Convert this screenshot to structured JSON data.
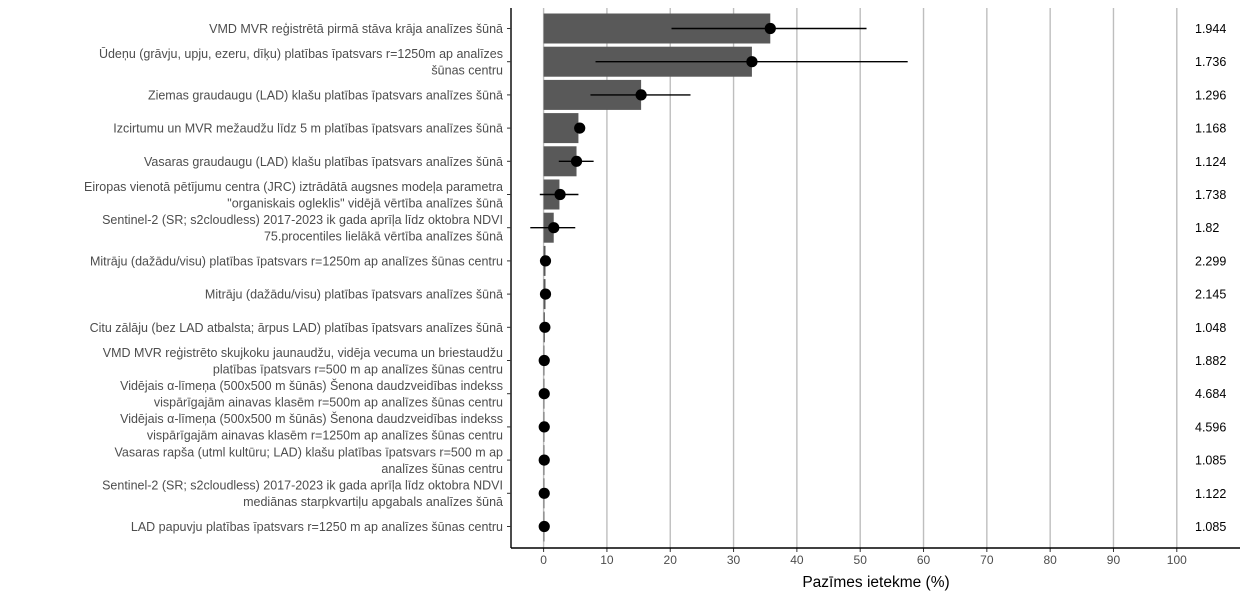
{
  "chart_data": {
    "type": "bar",
    "orientation": "horizontal",
    "xlabel": "Pazīmes ietekme (%)",
    "xlim": [
      -5,
      110
    ],
    "xticks": [
      0,
      10,
      20,
      30,
      40,
      50,
      60,
      70,
      80,
      90,
      100
    ],
    "grid": "vertical major lines at x ticks",
    "colors": {
      "bar": "#595959",
      "point": "#000000",
      "errorbar": "#000000",
      "grid": "#bebebe"
    },
    "categories": [
      [
        "VMD MVR reģistrētā pirmā stāva krāja analīzes šūnā"
      ],
      [
        "Ūdeņu (grāvju, upju, ezeru, dīķu) platības īpatsvars r=1250m ap analīzes",
        "šūnas centru"
      ],
      [
        "Ziemas graudaugu (LAD) klašu platības īpatsvars analīzes šūnā"
      ],
      [
        "Izcirtumu un MVR mežaudžu līdz 5 m platības īpatsvars analīzes šūnā"
      ],
      [
        "Vasaras graudaugu (LAD) klašu platības īpatsvars analīzes šūnā"
      ],
      [
        "Eiropas vienotā pētījumu centra (JRC) iztrādātā augsnes modeļa parametra",
        "\"organiskais ogleklis\" vidējā vērtība analīzes šūnā"
      ],
      [
        "Sentinel-2 (SR; s2cloudless) 2017-2023 ik gada aprīļa līdz oktobra NDVI",
        "75.procentiles lielākā vērtība analīzes šūnā"
      ],
      [
        "Mitrāju (dažādu/visu) platības īpatsvars r=1250m ap analīzes šūnas centru"
      ],
      [
        "Mitrāju (dažādu/visu) platības īpatsvars analīzes šūnā"
      ],
      [
        "Citu zālāju (bez LAD atbalsta; ārpus LAD) platības īpatsvars analīzes šūnā"
      ],
      [
        "VMD MVR reģistrēto skujkoku jaunaudžu, vidēja vecuma un briestaudžu",
        "platības īpatsvars r=500 m ap analīzes šūnas centru"
      ],
      [
        "Vidējais α-līmeņa (500x500 m šūnās) Šenona daudzveidības indekss",
        "vispārīgajām ainavas klasēm r=500m ap analīzes šūnas centru"
      ],
      [
        "Vidējais α-līmeņa (500x500 m šūnās) Šenona daudzveidības indekss",
        "vispārīgajām ainavas klasēm r=1250m ap analīzes šūnas centru"
      ],
      [
        "Vasaras rapša (utml kultūru; LAD) klašu platības īpatsvars r=500 m ap",
        "analīzes šūnas centru"
      ],
      [
        "Sentinel-2 (SR; s2cloudless) 2017-2023 ik gada aprīļa līdz oktobra NDVI",
        "mediānas starpkvartiļu apgabals analīzes šūnā"
      ],
      [
        "LAD papuvju platības īpatsvars r=1250 m ap analīzes šūnas centru"
      ]
    ],
    "bar_values": [
      35.8,
      32.9,
      15.4,
      5.5,
      5.2,
      2.5,
      1.6,
      0.3,
      0.3,
      0.2,
      0.1,
      0.1,
      0.1,
      0.1,
      0.1,
      0.1
    ],
    "point_values": [
      35.8,
      32.9,
      15.4,
      5.7,
      5.2,
      2.6,
      1.6,
      0.3,
      0.3,
      0.2,
      0.1,
      0.1,
      0.1,
      0.1,
      0.1,
      0.1
    ],
    "error_low": [
      20.2,
      8.2,
      7.4,
      5.0,
      2.4,
      -0.6,
      -2.1,
      0.0,
      0.0,
      0.0,
      0.0,
      0.0,
      0.0,
      0.0,
      0.0,
      0.0
    ],
    "error_high": [
      51.0,
      57.5,
      23.2,
      6.4,
      7.9,
      5.5,
      5.0,
      0.6,
      0.6,
      0.5,
      0.2,
      0.2,
      0.2,
      0.2,
      0.2,
      0.2
    ],
    "right_labels": [
      "1.944",
      "1.736",
      "1.296",
      "1.168",
      "1.124",
      "1.738",
      "1.82",
      "2.299",
      "2.145",
      "1.048",
      "1.882",
      "4.684",
      "4.596",
      "1.085",
      "1.122",
      "1.085"
    ]
  }
}
